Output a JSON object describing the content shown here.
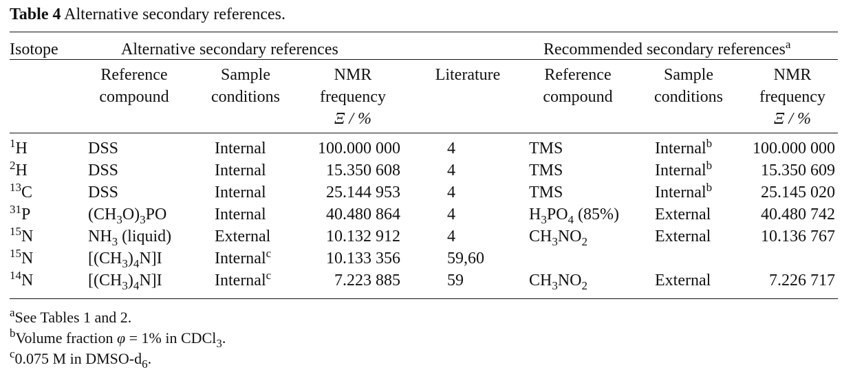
{
  "caption": {
    "label": "Table 4",
    "text": " Alternative secondary references."
  },
  "group_headers": {
    "isotope": "Isotope",
    "alternative": "Alternative secondary references",
    "recommended": "Recommended secondary references",
    "recommended_note": "a"
  },
  "sub_headers": {
    "alt_ref": [
      "Reference",
      "compound"
    ],
    "alt_cond": [
      "Sample",
      "conditions"
    ],
    "alt_freq": [
      "NMR",
      "frequency",
      "Ξ / %"
    ],
    "literature": "Literature",
    "rec_ref": [
      "Reference",
      "compound"
    ],
    "rec_cond": [
      "Sample",
      "conditions"
    ],
    "rec_freq": [
      "NMR",
      "frequency",
      "Ξ / %"
    ]
  },
  "rows": [
    {
      "mass": "1",
      "el": "H",
      "alt_ref": [
        "DSS"
      ],
      "alt_cond": "Internal",
      "alt_cond_note": "",
      "alt_freq": "100.000 000",
      "lit": "4",
      "rec_ref": [
        "TMS"
      ],
      "rec_cond": "Internal",
      "rec_cond_note": "b",
      "rec_freq": "100.000 000"
    },
    {
      "mass": "2",
      "el": "H",
      "alt_ref": [
        "DSS"
      ],
      "alt_cond": "Internal",
      "alt_cond_note": "",
      "alt_freq": "15.350 608",
      "lit": "4",
      "rec_ref": [
        "TMS"
      ],
      "rec_cond": "Internal",
      "rec_cond_note": "b",
      "rec_freq": "15.350 609"
    },
    {
      "mass": "13",
      "el": "C",
      "alt_ref": [
        "DSS"
      ],
      "alt_cond": "Internal",
      "alt_cond_note": "",
      "alt_freq": "25.144 953",
      "lit": "4",
      "rec_ref": [
        "TMS"
      ],
      "rec_cond": "Internal",
      "rec_cond_note": "b",
      "rec_freq": "25.145 020"
    },
    {
      "mass": "31",
      "el": "P",
      "alt_ref": [
        "(CH",
        "3",
        "O)",
        "3",
        "PO"
      ],
      "alt_cond": "Internal",
      "alt_cond_note": "",
      "alt_freq": "40.480 864",
      "lit": "4",
      "rec_ref": [
        "H",
        "3",
        "PO",
        "4",
        " (85%)"
      ],
      "rec_cond": "External",
      "rec_cond_note": "",
      "rec_freq": "40.480 742"
    },
    {
      "mass": "15",
      "el": "N",
      "alt_ref": [
        "NH",
        "3",
        " (liquid)"
      ],
      "alt_cond": "External",
      "alt_cond_note": "",
      "alt_freq": "10.132 912",
      "lit": "4",
      "rec_ref": [
        "CH",
        "3",
        "NO",
        "2"
      ],
      "rec_cond": "External",
      "rec_cond_note": "",
      "rec_freq": "10.136 767"
    },
    {
      "mass": "15",
      "el": "N",
      "alt_ref": [
        "[(CH",
        "3",
        ")",
        "4",
        "N]I"
      ],
      "alt_cond": "Internal",
      "alt_cond_note": "c",
      "alt_freq": "10.133 356",
      "lit": "59,60",
      "rec_ref": [
        ""
      ],
      "rec_cond": "",
      "rec_cond_note": "",
      "rec_freq": ""
    },
    {
      "mass": "14",
      "el": "N",
      "alt_ref": [
        "[(CH",
        "3",
        ")",
        "4",
        "N]I"
      ],
      "alt_cond": "Internal",
      "alt_cond_note": "c",
      "alt_freq": "7.223 885",
      "lit": "59",
      "rec_ref": [
        "CH",
        "3",
        "NO",
        "2"
      ],
      "rec_cond": "External",
      "rec_cond_note": "",
      "rec_freq": "7.226 717"
    }
  ],
  "footnotes": [
    {
      "mark": "a",
      "parts": [
        "See Tables 1 and 2."
      ]
    },
    {
      "mark": "b",
      "parts": [
        "Volume fraction ",
        "φ",
        " = 1% in CDCl",
        "3",
        "."
      ]
    },
    {
      "mark": "c",
      "parts": [
        "0.075 M in DMSO-d",
        "6",
        "."
      ]
    }
  ]
}
